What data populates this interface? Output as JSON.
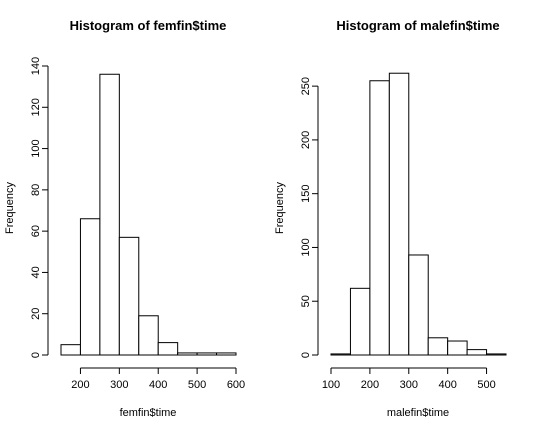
{
  "chart_data": [
    {
      "type": "bar",
      "title": "Histogram of femfin$time",
      "xlabel": "femfin$time",
      "ylabel": "Frequency",
      "bin_edges": [
        150,
        200,
        250,
        300,
        350,
        400,
        450,
        500,
        550,
        600
      ],
      "values": [
        5,
        66,
        136,
        57,
        19,
        6,
        1,
        1,
        1
      ],
      "xticks": [
        200,
        300,
        400,
        500,
        600
      ],
      "yticks": [
        0,
        20,
        40,
        60,
        80,
        100,
        120,
        140
      ],
      "xlim": [
        150,
        600
      ],
      "ylim": [
        0,
        140
      ],
      "grid": false
    },
    {
      "type": "bar",
      "title": "Histogram of malefin$time",
      "xlabel": "malefin$time",
      "ylabel": "Frequency",
      "bin_edges": [
        100,
        150,
        200,
        250,
        300,
        350,
        400,
        450,
        500,
        550
      ],
      "values": [
        1,
        62,
        255,
        262,
        93,
        16,
        13,
        5,
        1
      ],
      "xticks": [
        100,
        200,
        300,
        400,
        500
      ],
      "yticks": [
        0,
        50,
        100,
        150,
        200,
        250
      ],
      "xlim": [
        100,
        550
      ],
      "ylim": [
        0,
        265
      ],
      "grid": false
    }
  ]
}
